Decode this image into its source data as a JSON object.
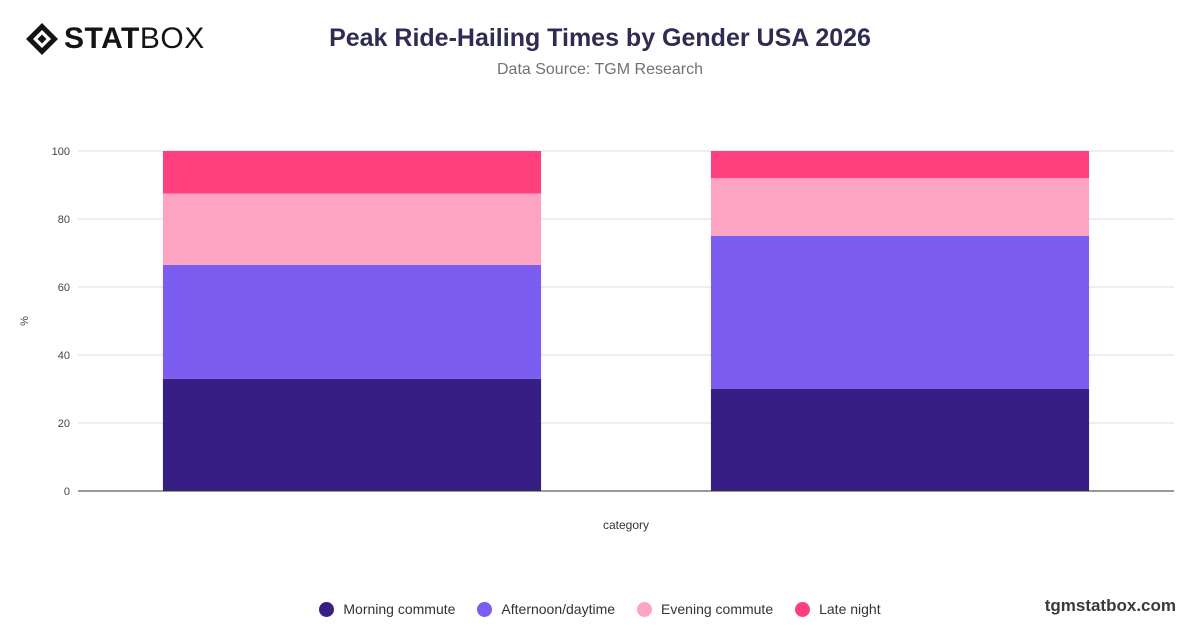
{
  "brand": {
    "logo_word_bold": "STAT",
    "logo_word_light": "BOX",
    "logo_icon": "statbox-diamond-logo-icon",
    "footer": "tgmstatbox.com"
  },
  "chart_data": {
    "type": "bar",
    "stacked": true,
    "title": "Peak Ride-Hailing Times by Gender USA 2026",
    "subtitle": "Data Source: TGM Research",
    "xlabel": "category",
    "ylabel": "%",
    "ylim": [
      0,
      100
    ],
    "yticks": [
      0,
      20,
      40,
      60,
      80,
      100
    ],
    "grid": true,
    "legend_position": "bottom",
    "categories": [
      "",
      ""
    ],
    "series": [
      {
        "name": "Morning commute",
        "color": "#371e85",
        "values": [
          33,
          30
        ]
      },
      {
        "name": "Afternoon/daytime",
        "color": "#7b5ef0",
        "values": [
          33.5,
          45
        ]
      },
      {
        "name": "Evening commute",
        "color": "#fda4c3",
        "values": [
          21,
          17
        ]
      },
      {
        "name": "Late night",
        "color": "#fe407f",
        "values": [
          12.5,
          8
        ]
      }
    ]
  }
}
